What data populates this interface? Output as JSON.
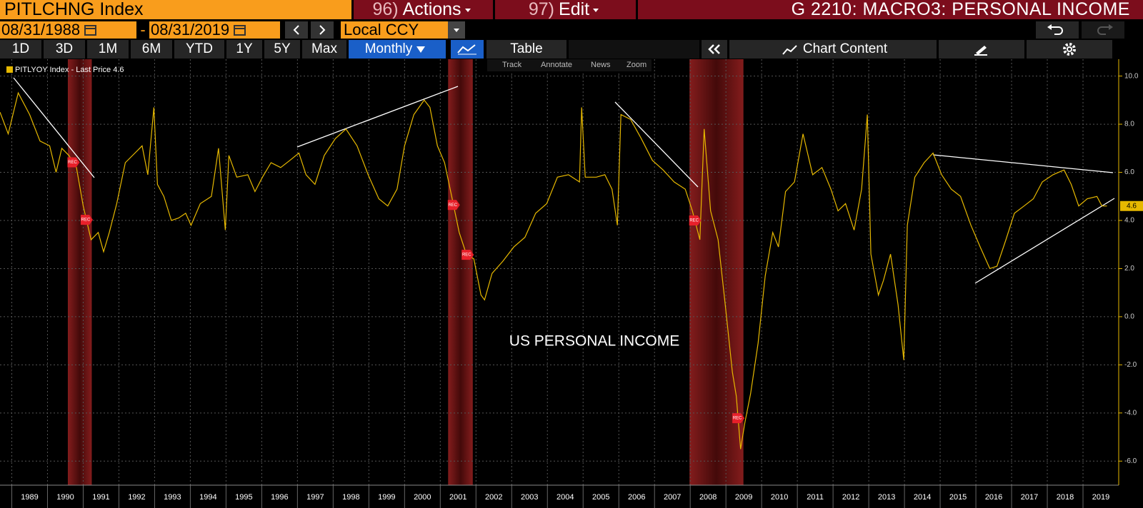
{
  "header": {
    "ticker": "PITLCHNG Index",
    "actions_number": "96)",
    "actions": "Actions",
    "edit_number": "97)",
    "edit": "Edit",
    "title": "G 2210: MACRO3: PERSONAL INCOME"
  },
  "toolbar": {
    "start_date": "08/31/1988",
    "date_separator": "-",
    "end_date": "08/31/2019",
    "currency": "Local CCY",
    "periods": [
      "1D",
      "3D",
      "1M",
      "6M",
      "YTD",
      "1Y",
      "5Y",
      "Max"
    ],
    "frequency": "Monthly",
    "table": "Table",
    "chart_content": "Chart Content"
  },
  "chart_tools": [
    "Track",
    "Annotate",
    "News",
    "Zoom"
  ],
  "chart_data": {
    "type": "line",
    "annotation": "US PERSONAL INCOME",
    "legend_text": "- Last Price",
    "recession_label": "REC",
    "recessions": [
      {
        "start": 1990.57,
        "end": 1991.24
      },
      {
        "start": 2001.22,
        "end": 2001.91
      },
      {
        "start": 2007.98,
        "end": 2009.49
      }
    ],
    "xlim": [
      1988.67,
      2020.0
    ],
    "xticks": [
      1989,
      1990,
      1991,
      1992,
      1993,
      1994,
      1995,
      1996,
      1997,
      1998,
      1999,
      2000,
      2001,
      2002,
      2003,
      2004,
      2005,
      2006,
      2007,
      2008,
      2009,
      2010,
      2011,
      2012,
      2013,
      2014,
      2015,
      2016,
      2017,
      2018,
      2019
    ],
    "ylim": [
      -7.0,
      10.7
    ],
    "yticks": [
      {
        "value": -6,
        "label": "-6.0"
      },
      {
        "value": -4,
        "label": "-4.0"
      },
      {
        "value": -2,
        "label": "-2.0"
      },
      {
        "value": 0,
        "label": "0.0"
      },
      {
        "value": 2,
        "label": "2.0"
      },
      {
        "value": 4,
        "label": "4.0"
      },
      {
        "value": 6,
        "label": "6.0"
      },
      {
        "value": 8,
        "label": "8.0"
      },
      {
        "value": 10,
        "label": "10.0"
      }
    ],
    "grid": true,
    "series": [
      {
        "name": "PITLYOY Index",
        "color": "#e6b800",
        "x": [
          1988.67,
          1988.9,
          1989.18,
          1989.5,
          1989.79,
          1990.06,
          1990.24,
          1990.4,
          1990.6,
          1990.81,
          1991.0,
          1991.22,
          1991.42,
          1991.57,
          1991.73,
          1991.94,
          1992.18,
          1992.45,
          1992.65,
          1992.81,
          1992.98,
          1993.08,
          1993.26,
          1993.47,
          1993.67,
          1993.87,
          1994.02,
          1994.28,
          1994.59,
          1994.79,
          1994.98,
          1995.08,
          1995.3,
          1995.61,
          1995.81,
          1996.02,
          1996.26,
          1996.53,
          1996.79,
          1997.04,
          1997.24,
          1997.49,
          1997.75,
          1998.06,
          1998.36,
          1998.67,
          1998.98,
          1999.28,
          1999.53,
          1999.79,
          2000.0,
          2000.26,
          2000.55,
          2000.71,
          2000.92,
          2001.12,
          2001.32,
          2001.53,
          2001.73,
          2001.94,
          2002.14,
          2002.24,
          2002.45,
          2002.75,
          2003.06,
          2003.37,
          2003.67,
          2003.98,
          2004.28,
          2004.59,
          2004.9,
          2004.96,
          2005.06,
          2005.37,
          2005.61,
          2005.81,
          2005.96,
          2006.06,
          2006.33,
          2006.63,
          2006.94,
          2007.24,
          2007.55,
          2007.86,
          2008.06,
          2008.27,
          2008.39,
          2008.57,
          2008.78,
          2008.98,
          2009.18,
          2009.29,
          2009.41,
          2009.53,
          2009.69,
          2009.9,
          2010.1,
          2010.31,
          2010.47,
          2010.67,
          2010.92,
          2011.16,
          2011.43,
          2011.69,
          2011.94,
          2012.14,
          2012.35,
          2012.59,
          2012.8,
          2012.96,
          2013.06,
          2013.27,
          2013.41,
          2013.61,
          2013.82,
          2013.98,
          2014.08,
          2014.29,
          2014.55,
          2014.8,
          2015.04,
          2015.31,
          2015.57,
          2015.86,
          2016.12,
          2016.39,
          2016.59,
          2016.84,
          2017.08,
          2017.35,
          2017.61,
          2017.86,
          2018.16,
          2018.47,
          2018.67,
          2018.88,
          2019.12,
          2019.39,
          2019.53,
          2019.67
        ],
        "values": [
          8.5,
          7.6,
          9.3,
          8.4,
          7.3,
          7.1,
          6.0,
          7.0,
          6.7,
          6.2,
          4.6,
          3.2,
          3.5,
          2.7,
          3.5,
          4.7,
          6.4,
          6.8,
          7.1,
          5.9,
          8.7,
          5.5,
          5.0,
          4.0,
          4.1,
          4.3,
          3.8,
          4.7,
          5.0,
          7.0,
          3.6,
          6.7,
          5.8,
          5.9,
          5.2,
          5.8,
          6.4,
          6.2,
          6.5,
          6.8,
          5.9,
          5.5,
          6.7,
          7.4,
          7.8,
          7.1,
          5.9,
          4.9,
          4.6,
          5.3,
          7.1,
          8.4,
          9.0,
          8.7,
          7.1,
          6.4,
          5.0,
          3.5,
          2.6,
          2.4,
          0.9,
          0.7,
          1.8,
          2.3,
          2.9,
          3.3,
          4.3,
          4.7,
          5.8,
          5.9,
          5.6,
          8.7,
          5.8,
          5.8,
          5.9,
          5.3,
          3.8,
          8.4,
          8.2,
          7.4,
          6.5,
          6.1,
          5.6,
          5.3,
          4.4,
          3.2,
          7.8,
          4.4,
          3.2,
          0.5,
          -2.3,
          -3.3,
          -5.5,
          -4.4,
          -3.2,
          -1.1,
          1.7,
          3.5,
          2.9,
          5.2,
          5.6,
          7.6,
          5.9,
          6.2,
          5.3,
          4.4,
          4.7,
          3.6,
          5.3,
          8.4,
          2.6,
          0.9,
          1.5,
          2.6,
          0.5,
          -1.8,
          3.8,
          5.8,
          6.4,
          6.8,
          5.9,
          5.3,
          5.0,
          3.8,
          2.9,
          2.0,
          2.1,
          3.2,
          4.3,
          4.6,
          4.9,
          5.6,
          5.9,
          6.1,
          5.5,
          4.6,
          4.9,
          5.0,
          4.6,
          4.6
        ]
      }
    ]
  }
}
